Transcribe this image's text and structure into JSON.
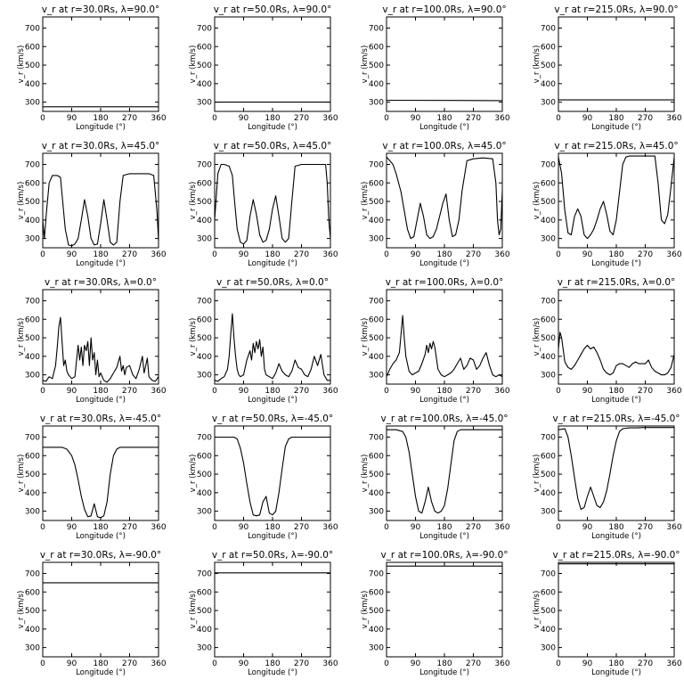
{
  "shared": {
    "xlabel": "Longitude (°)",
    "ylabel": "v_r (km/s)",
    "xlim": [
      0,
      360
    ],
    "ylim": [
      250,
      760
    ],
    "xticks": [
      0,
      90,
      180,
      270,
      360
    ],
    "yticks": [
      300,
      400,
      500,
      600,
      700
    ]
  },
  "chart_data": [
    {
      "type": "line",
      "title": "v_r at r=30.0Rs, λ=90.0°",
      "x": [
        0,
        360
      ],
      "y": [
        275,
        275
      ]
    },
    {
      "type": "line",
      "title": "v_r at r=50.0Rs, λ=90.0°",
      "x": [
        0,
        360
      ],
      "y": [
        300,
        300
      ]
    },
    {
      "type": "line",
      "title": "v_r at r=100.0Rs, λ=90.0°",
      "x": [
        0,
        360
      ],
      "y": [
        310,
        308
      ]
    },
    {
      "type": "line",
      "title": "v_r at r=215.0Rs, λ=90.0°",
      "x": [
        0,
        360
      ],
      "y": [
        312,
        312
      ]
    },
    {
      "type": "line",
      "title": "v_r at r=30.0Rs, λ=45.0°",
      "x": [
        0,
        5,
        12,
        20,
        30,
        45,
        55,
        62,
        70,
        80,
        90,
        100,
        110,
        120,
        130,
        140,
        150,
        160,
        170,
        180,
        190,
        200,
        210,
        220,
        230,
        240,
        250,
        270,
        300,
        330,
        345,
        355,
        360
      ],
      "y": [
        400,
        300,
        450,
        600,
        640,
        640,
        630,
        500,
        350,
        265,
        260,
        270,
        300,
        400,
        510,
        420,
        300,
        265,
        270,
        380,
        510,
        400,
        280,
        265,
        280,
        500,
        640,
        650,
        650,
        650,
        640,
        450,
        290
      ]
    },
    {
      "type": "line",
      "title": "v_r at r=50.0Rs, λ=45.0°",
      "x": [
        0,
        10,
        20,
        30,
        45,
        55,
        62,
        70,
        80,
        90,
        100,
        110,
        120,
        130,
        140,
        150,
        160,
        170,
        180,
        190,
        200,
        210,
        220,
        230,
        240,
        250,
        270,
        300,
        330,
        345,
        350,
        355,
        360
      ],
      "y": [
        400,
        650,
        700,
        700,
        690,
        640,
        500,
        350,
        280,
        270,
        290,
        420,
        510,
        430,
        320,
        280,
        290,
        350,
        460,
        530,
        420,
        300,
        280,
        300,
        500,
        690,
        700,
        700,
        700,
        700,
        600,
        400,
        300
      ]
    },
    {
      "type": "line",
      "title": "v_r at r=100.0Rs, λ=45.0°",
      "x": [
        0,
        10,
        20,
        30,
        45,
        55,
        65,
        75,
        85,
        95,
        105,
        115,
        125,
        135,
        145,
        155,
        165,
        175,
        185,
        195,
        205,
        215,
        225,
        235,
        250,
        270,
        300,
        330,
        340,
        345,
        350,
        355,
        360
      ],
      "y": [
        740,
        720,
        700,
        650,
        550,
        450,
        350,
        300,
        310,
        400,
        490,
        420,
        320,
        300,
        310,
        350,
        420,
        490,
        540,
        400,
        310,
        320,
        400,
        560,
        720,
        730,
        735,
        730,
        600,
        400,
        320,
        350,
        560
      ]
    },
    {
      "type": "line",
      "title": "v_r at r=215.0Rs, λ=45.0°",
      "x": [
        0,
        10,
        20,
        30,
        40,
        50,
        60,
        70,
        80,
        90,
        100,
        110,
        120,
        130,
        140,
        150,
        160,
        170,
        180,
        190,
        200,
        210,
        220,
        230,
        240,
        250,
        270,
        300,
        310,
        320,
        330,
        340,
        350,
        360
      ],
      "y": [
        740,
        650,
        450,
        330,
        320,
        420,
        460,
        420,
        320,
        300,
        320,
        350,
        400,
        460,
        500,
        430,
        340,
        320,
        400,
        550,
        700,
        740,
        745,
        745,
        745,
        745,
        745,
        745,
        600,
        400,
        380,
        430,
        580,
        740
      ]
    },
    {
      "type": "line",
      "title": "v_r at r=30.0Rs, λ=0.0°",
      "x": [
        0,
        10,
        20,
        30,
        40,
        45,
        50,
        55,
        60,
        65,
        70,
        75,
        80,
        90,
        100,
        110,
        115,
        120,
        125,
        130,
        135,
        140,
        145,
        150,
        155,
        160,
        165,
        170,
        175,
        180,
        190,
        200,
        210,
        220,
        230,
        240,
        245,
        250,
        255,
        260,
        270,
        280,
        290,
        300,
        310,
        315,
        320,
        325,
        330,
        340,
        350,
        360
      ],
      "y": [
        270,
        265,
        290,
        280,
        350,
        450,
        560,
        610,
        480,
        350,
        380,
        320,
        300,
        280,
        290,
        460,
        380,
        450,
        350,
        460,
        430,
        480,
        350,
        500,
        380,
        420,
        300,
        380,
        290,
        310,
        270,
        260,
        280,
        310,
        340,
        400,
        320,
        350,
        300,
        340,
        350,
        300,
        280,
        330,
        400,
        310,
        350,
        390,
        290,
        270,
        265,
        290
      ]
    },
    {
      "type": "line",
      "title": "v_r at r=50.0Rs, λ=0.0°",
      "x": [
        0,
        10,
        20,
        30,
        40,
        45,
        50,
        55,
        60,
        65,
        70,
        75,
        80,
        90,
        100,
        110,
        115,
        120,
        125,
        130,
        135,
        140,
        145,
        150,
        155,
        160,
        170,
        180,
        190,
        200,
        210,
        220,
        230,
        240,
        250,
        260,
        270,
        280,
        290,
        300,
        310,
        320,
        330,
        340,
        350,
        360
      ],
      "y": [
        270,
        265,
        280,
        290,
        330,
        400,
        520,
        630,
        500,
        400,
        330,
        300,
        290,
        300,
        380,
        430,
        380,
        470,
        420,
        480,
        440,
        490,
        400,
        450,
        330,
        300,
        290,
        280,
        310,
        360,
        320,
        300,
        290,
        320,
        380,
        340,
        330,
        300,
        290,
        330,
        400,
        350,
        410,
        300,
        270,
        270
      ]
    },
    {
      "type": "line",
      "title": "v_r at r=100.0Rs, λ=0.0°",
      "x": [
        0,
        10,
        20,
        30,
        40,
        45,
        50,
        55,
        60,
        70,
        80,
        90,
        100,
        110,
        120,
        125,
        130,
        135,
        140,
        145,
        150,
        160,
        170,
        180,
        190,
        200,
        210,
        220,
        230,
        240,
        250,
        260,
        270,
        280,
        290,
        300,
        310,
        320,
        330,
        340,
        350,
        360
      ],
      "y": [
        290,
        330,
        360,
        380,
        420,
        520,
        620,
        500,
        400,
        320,
        300,
        310,
        320,
        360,
        410,
        460,
        420,
        470,
        440,
        480,
        450,
        330,
        300,
        290,
        300,
        310,
        330,
        360,
        390,
        330,
        350,
        390,
        380,
        330,
        350,
        390,
        420,
        350,
        300,
        290,
        300,
        290
      ]
    },
    {
      "type": "line",
      "title": "v_r at r=215.0Rs, λ=0.0°",
      "x": [
        0,
        5,
        10,
        20,
        30,
        40,
        50,
        60,
        70,
        80,
        90,
        100,
        110,
        120,
        130,
        140,
        150,
        160,
        170,
        180,
        190,
        200,
        210,
        220,
        230,
        240,
        250,
        260,
        270,
        280,
        290,
        300,
        310,
        320,
        330,
        340,
        350,
        360
      ],
      "y": [
        440,
        530,
        500,
        370,
        340,
        330,
        350,
        380,
        410,
        440,
        460,
        440,
        450,
        420,
        380,
        330,
        310,
        300,
        310,
        350,
        360,
        360,
        350,
        340,
        360,
        370,
        360,
        360,
        360,
        380,
        340,
        320,
        310,
        300,
        300,
        310,
        340,
        410
      ]
    },
    {
      "type": "line",
      "title": "v_r at r=30.0Rs, λ=-45.0°",
      "x": [
        0,
        30,
        60,
        75,
        90,
        100,
        110,
        120,
        130,
        140,
        150,
        160,
        170,
        180,
        190,
        200,
        210,
        220,
        230,
        240,
        250,
        270,
        300,
        330,
        360
      ],
      "y": [
        645,
        645,
        645,
        635,
        600,
        550,
        470,
        380,
        310,
        270,
        275,
        340,
        270,
        265,
        275,
        350,
        500,
        600,
        635,
        645,
        645,
        645,
        645,
        645,
        645
      ]
    },
    {
      "type": "line",
      "title": "v_r at r=50.0Rs, λ=-45.0°",
      "x": [
        0,
        30,
        60,
        70,
        80,
        90,
        100,
        110,
        120,
        130,
        140,
        150,
        160,
        170,
        180,
        190,
        200,
        210,
        220,
        230,
        240,
        250,
        270,
        300,
        360
      ],
      "y": [
        700,
        700,
        700,
        690,
        640,
        560,
        450,
        350,
        280,
        275,
        280,
        350,
        380,
        290,
        280,
        300,
        400,
        530,
        650,
        690,
        700,
        700,
        700,
        700,
        700
      ]
    },
    {
      "type": "line",
      "title": "v_r at r=100.0Rs, λ=-45.0°",
      "x": [
        0,
        30,
        50,
        60,
        70,
        80,
        90,
        100,
        110,
        120,
        130,
        140,
        150,
        160,
        170,
        180,
        190,
        200,
        210,
        220,
        230,
        240,
        270,
        300,
        360
      ],
      "y": [
        740,
        740,
        730,
        700,
        620,
        500,
        380,
        300,
        290,
        350,
        430,
        350,
        300,
        290,
        300,
        330,
        420,
        550,
        680,
        730,
        740,
        740,
        740,
        740,
        740
      ]
    },
    {
      "type": "line",
      "title": "v_r at r=215.0Rs, λ=-45.0°",
      "x": [
        0,
        20,
        30,
        40,
        50,
        60,
        70,
        80,
        90,
        100,
        110,
        120,
        130,
        140,
        150,
        160,
        170,
        180,
        190,
        200,
        210,
        220,
        240,
        270,
        300,
        330,
        360
      ],
      "y": [
        740,
        745,
        700,
        600,
        480,
        370,
        310,
        320,
        380,
        430,
        380,
        330,
        320,
        350,
        410,
        500,
        600,
        680,
        730,
        745,
        748,
        750,
        750,
        752,
        752,
        752,
        752
      ]
    },
    {
      "type": "line",
      "title": "v_r at r=30.0Rs, λ=-90.0°",
      "x": [
        0,
        360
      ],
      "y": [
        650,
        650
      ]
    },
    {
      "type": "line",
      "title": "v_r at r=50.0Rs, λ=-90.0°",
      "x": [
        0,
        360
      ],
      "y": [
        703,
        703
      ]
    },
    {
      "type": "line",
      "title": "v_r at r=100.0Rs, λ=-90.0°",
      "x": [
        0,
        360
      ],
      "y": [
        740,
        740
      ]
    },
    {
      "type": "line",
      "title": "v_r at r=215.0Rs, λ=-90.0°",
      "x": [
        0,
        360
      ],
      "y": [
        752,
        752
      ]
    }
  ]
}
